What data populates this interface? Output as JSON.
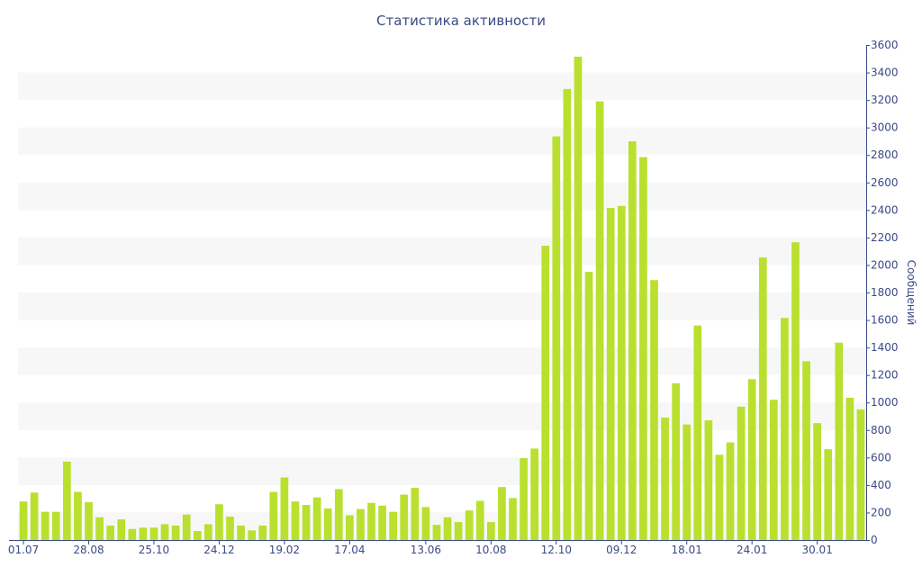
{
  "chart_data": {
    "type": "bar",
    "title": "Статистика активности",
    "ylabel": "Сообщений",
    "xlabel": "",
    "ylim": [
      0,
      3600
    ],
    "y_ticks": [
      0,
      200,
      400,
      600,
      800,
      1000,
      1200,
      1400,
      1600,
      1800,
      2000,
      2200,
      2400,
      2600,
      2800,
      3000,
      3200,
      3400,
      3600
    ],
    "y_axis_side": "right",
    "grid": "alternating horizontal bands",
    "x_tick_labels": [
      {
        "index": 0,
        "label": "01.07"
      },
      {
        "index": 6,
        "label": "28.08"
      },
      {
        "index": 12,
        "label": "25.10"
      },
      {
        "index": 18,
        "label": "24.12"
      },
      {
        "index": 24,
        "label": "19.02"
      },
      {
        "index": 30,
        "label": "17.04"
      },
      {
        "index": 37,
        "label": "13.06"
      },
      {
        "index": 43,
        "label": "10.08"
      },
      {
        "index": 49,
        "label": "12.10"
      },
      {
        "index": 55,
        "label": "09.12"
      },
      {
        "index": 61,
        "label": "18.01"
      },
      {
        "index": 67,
        "label": "24.01"
      },
      {
        "index": 73,
        "label": "30.01"
      }
    ],
    "values": [
      280,
      345,
      205,
      205,
      570,
      350,
      275,
      165,
      105,
      150,
      80,
      90,
      90,
      115,
      105,
      185,
      65,
      115,
      260,
      170,
      105,
      70,
      105,
      350,
      455,
      280,
      255,
      310,
      230,
      370,
      180,
      225,
      270,
      250,
      205,
      330,
      380,
      240,
      110,
      165,
      130,
      215,
      285,
      130,
      385,
      305,
      595,
      665,
      2140,
      2935,
      3280,
      3515,
      1950,
      3190,
      2415,
      2430,
      2900,
      2785,
      1890,
      890,
      1140,
      840,
      1560,
      870,
      620,
      710,
      970,
      1170,
      2055,
      1020,
      1615,
      2165,
      1300,
      850,
      660,
      1435,
      1035,
      950
    ],
    "colors": {
      "bar": "#b9e02e",
      "band": "#f7f7f7",
      "axis": "#3a4a86",
      "text": "#3a4a86"
    }
  }
}
